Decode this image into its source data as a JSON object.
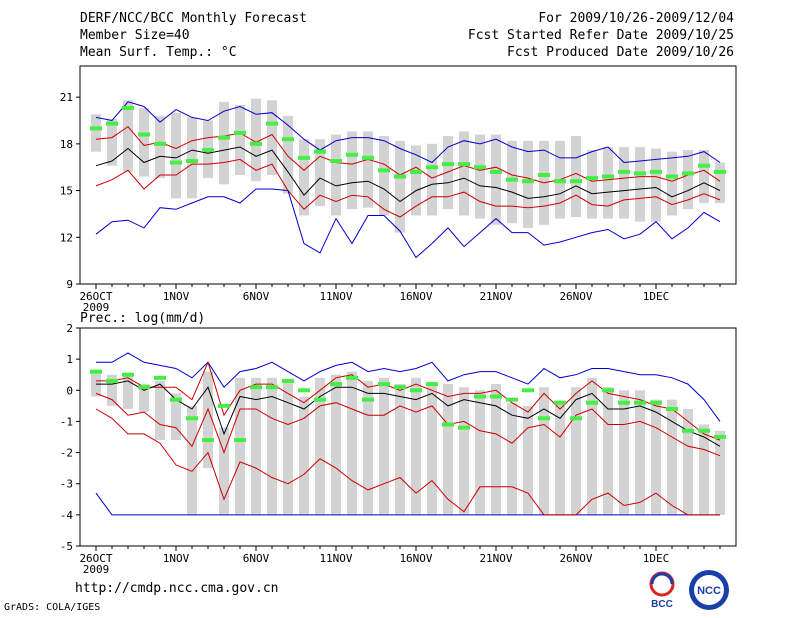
{
  "header": {
    "title": "DERF/NCC/BCC Monthly Forecast",
    "member": "Member Size=40",
    "variable": "Mean Surf. Temp.: °C",
    "period": "For 2009/10/26-2009/12/04",
    "start": "Fcst Started Refer Date 2009/10/25",
    "produced": "Fcst Produced Date 2009/10/26"
  },
  "footer": {
    "url": "http://cmdp.ncc.cma.gov.cn",
    "grads": "GrADS: COLA/IGES",
    "logo_left_text": "BCC",
    "logo_right_text": "NCC"
  },
  "colors": {
    "envelope": "#0000cc",
    "percentile": "#cc0000",
    "mean": "#000000",
    "box": "#d3d3d3",
    "obs": "#44ee44"
  },
  "chart_data": [
    {
      "type": "box",
      "title": "Mean Surf. Temp.: °C",
      "ylim": [
        9,
        23
      ],
      "yticks": [
        9,
        12,
        15,
        18,
        21
      ],
      "xlim": [
        0,
        41
      ],
      "xtick_positions": [
        1,
        6,
        11,
        16,
        21,
        26,
        31,
        36
      ],
      "xtick_labels": [
        "26OCT",
        "1NOV",
        "6NOV",
        "11NOV",
        "16NOV",
        "21NOV",
        "26NOV",
        "1DEC"
      ],
      "x_year_label": "2009",
      "x": [
        1,
        2,
        3,
        4,
        5,
        6,
        7,
        8,
        9,
        10,
        11,
        12,
        13,
        14,
        15,
        16,
        17,
        18,
        19,
        20,
        21,
        22,
        23,
        24,
        25,
        26,
        27,
        28,
        29,
        30,
        31,
        32,
        33,
        34,
        35,
        36,
        37,
        38,
        39,
        40
      ],
      "series": [
        {
          "name": "max",
          "values": [
            19.7,
            19.5,
            20.7,
            20.4,
            19.4,
            20.2,
            19.7,
            19.5,
            20.1,
            20.4,
            19.9,
            20.0,
            19.2,
            18.3,
            17.6,
            18.2,
            18.4,
            18.4,
            18.2,
            17.7,
            17.3,
            16.8,
            17.8,
            18.2,
            18.0,
            18.3,
            17.8,
            17.5,
            17.6,
            17.1,
            17.1,
            17.5,
            17.8,
            16.8,
            16.9,
            17.0,
            17.1,
            17.2,
            17.5,
            16.8
          ]
        },
        {
          "name": "p90",
          "values": [
            18.3,
            18.4,
            19.1,
            17.9,
            18.1,
            17.7,
            18.2,
            18.4,
            18.5,
            18.7,
            18.1,
            18.6,
            17.2,
            16.3,
            17.2,
            16.8,
            16.7,
            17.0,
            16.7,
            16.0,
            16.5,
            15.8,
            16.2,
            16.6,
            16.3,
            16.5,
            16.0,
            15.8,
            15.5,
            15.7,
            16.1,
            15.6,
            15.7,
            15.8,
            15.9,
            15.9,
            15.6,
            16.0,
            16.3,
            15.6
          ]
        },
        {
          "name": "mean",
          "values": [
            16.6,
            16.9,
            17.7,
            16.8,
            17.2,
            17.1,
            17.6,
            17.4,
            17.6,
            17.8,
            17.2,
            17.6,
            16.2,
            14.7,
            15.8,
            15.3,
            15.5,
            15.6,
            15.1,
            14.3,
            15.0,
            15.4,
            15.5,
            15.8,
            15.3,
            15.2,
            14.9,
            14.5,
            14.6,
            14.8,
            15.3,
            14.8,
            14.9,
            15.0,
            15.1,
            15.2,
            14.6,
            15.0,
            15.5,
            15.0
          ]
        },
        {
          "name": "p10",
          "values": [
            15.3,
            15.7,
            16.3,
            15.1,
            16.0,
            16.0,
            16.7,
            16.7,
            16.8,
            17.0,
            16.3,
            16.7,
            15.0,
            13.8,
            14.7,
            14.3,
            14.7,
            14.6,
            13.8,
            13.3,
            14.0,
            14.6,
            14.6,
            14.9,
            14.3,
            14.0,
            14.0,
            13.9,
            14.0,
            14.2,
            14.7,
            14.1,
            14.0,
            14.4,
            14.5,
            14.6,
            14.1,
            14.4,
            14.8,
            14.4
          ]
        },
        {
          "name": "min",
          "values": [
            12.2,
            13.0,
            13.1,
            12.6,
            13.9,
            13.8,
            14.2,
            14.6,
            14.6,
            14.2,
            15.1,
            15.1,
            15.0,
            11.6,
            11.0,
            13.2,
            11.6,
            13.4,
            13.4,
            12.4,
            10.7,
            11.6,
            12.6,
            11.4,
            12.3,
            13.2,
            12.3,
            12.3,
            11.5,
            11.7,
            12.0,
            12.3,
            12.5,
            11.9,
            12.2,
            13.0,
            11.9,
            12.6,
            13.6,
            13.0
          ]
        }
      ],
      "boxes": {
        "upper": [
          19.9,
          19.6,
          20.8,
          20.3,
          19.8,
          20.0,
          19.7,
          19.5,
          20.7,
          20.5,
          20.9,
          20.8,
          19.8,
          18.3,
          18.3,
          18.6,
          18.8,
          18.8,
          18.5,
          18.2,
          17.9,
          18.0,
          18.5,
          18.8,
          18.6,
          18.6,
          18.2,
          18.2,
          18.2,
          18.2,
          18.5,
          17.6,
          17.8,
          17.8,
          17.8,
          17.7,
          17.5,
          17.6,
          17.6,
          16.8
        ],
        "lower": [
          17.5,
          16.6,
          16.2,
          15.9,
          15.8,
          14.5,
          14.5,
          15.8,
          15.4,
          16.0,
          15.6,
          16.0,
          14.8,
          13.4,
          14.0,
          13.4,
          13.8,
          13.9,
          13.4,
          12.3,
          13.4,
          13.4,
          13.8,
          13.4,
          13.2,
          12.8,
          12.9,
          12.6,
          12.8,
          13.2,
          13.3,
          13.2,
          13.2,
          13.2,
          13.0,
          13.0,
          13.4,
          13.8,
          14.2,
          14.2
        ]
      },
      "observation": [
        19.0,
        19.3,
        20.3,
        18.6,
        18.0,
        16.8,
        16.9,
        17.6,
        18.4,
        18.7,
        18.0,
        19.3,
        18.3,
        17.1,
        17.5,
        16.9,
        17.3,
        17.1,
        16.3,
        15.9,
        16.2,
        16.5,
        16.7,
        16.7,
        16.5,
        16.2,
        15.7,
        15.6,
        16.0,
        15.6,
        15.6,
        15.8,
        15.9,
        16.2,
        16.1,
        16.2,
        15.9,
        16.1,
        16.6,
        16.2
      ]
    },
    {
      "type": "box",
      "title": "Prec.: log(mm/d)",
      "ylim": [
        -5,
        2
      ],
      "yticks": [
        -5,
        -4,
        -3,
        -2,
        -1,
        0,
        1,
        2
      ],
      "xlim": [
        0,
        41
      ],
      "xtick_positions": [
        1,
        6,
        11,
        16,
        21,
        26,
        31,
        36
      ],
      "xtick_labels": [
        "26OCT",
        "1NOV",
        "6NOV",
        "11NOV",
        "16NOV",
        "21NOV",
        "26NOV",
        "1DEC"
      ],
      "x_year_label": "2009",
      "x": [
        1,
        2,
        3,
        4,
        5,
        6,
        7,
        8,
        9,
        10,
        11,
        12,
        13,
        14,
        15,
        16,
        17,
        18,
        19,
        20,
        21,
        22,
        23,
        24,
        25,
        26,
        27,
        28,
        29,
        30,
        31,
        32,
        33,
        34,
        35,
        36,
        37,
        38,
        39,
        40
      ],
      "series": [
        {
          "name": "max",
          "values": [
            0.9,
            0.9,
            1.2,
            0.9,
            0.8,
            0.7,
            0.4,
            0.9,
            0.1,
            0.6,
            0.7,
            0.9,
            0.6,
            0.3,
            0.6,
            0.8,
            0.9,
            0.6,
            0.7,
            0.6,
            0.7,
            0.9,
            0.3,
            0.5,
            0.6,
            0.6,
            0.4,
            0.2,
            0.7,
            0.4,
            0.5,
            0.7,
            0.7,
            0.6,
            0.5,
            0.5,
            0.4,
            0.2,
            -0.3,
            -1.0
          ]
        },
        {
          "name": "p90",
          "values": [
            0.3,
            0.3,
            0.4,
            0.1,
            0.1,
            0.1,
            -0.3,
            0.9,
            -0.8,
            0.0,
            0.2,
            0.2,
            -0.1,
            -0.4,
            0.0,
            0.4,
            0.5,
            0.1,
            0.2,
            0.0,
            0.2,
            0.0,
            -0.2,
            -0.1,
            -0.1,
            0.0,
            -0.4,
            -0.7,
            -0.1,
            -0.6,
            -0.1,
            0.3,
            -0.1,
            -0.2,
            -0.3,
            -0.5,
            -0.6,
            -1.0,
            -1.4,
            -1.6
          ]
        },
        {
          "name": "mean",
          "values": [
            0.2,
            0.2,
            0.3,
            0.0,
            0.2,
            -0.3,
            -0.6,
            0.1,
            -1.4,
            -0.2,
            -0.3,
            -0.2,
            -0.4,
            -0.6,
            -0.2,
            0.1,
            0.1,
            -0.1,
            -0.1,
            -0.2,
            -0.3,
            -0.1,
            -0.5,
            -0.3,
            -0.4,
            -0.5,
            -0.8,
            -0.9,
            -0.6,
            -0.9,
            -0.3,
            -0.1,
            -0.6,
            -0.6,
            -0.5,
            -0.7,
            -1.0,
            -1.3,
            -1.5,
            -1.8
          ]
        },
        {
          "name": "p10",
          "values": [
            -0.1,
            -0.3,
            -0.8,
            -0.7,
            -1.1,
            -1.2,
            -1.8,
            -0.6,
            -2.0,
            -0.6,
            -0.6,
            -0.9,
            -1.1,
            -0.9,
            -0.5,
            -0.4,
            -0.6,
            -0.8,
            -0.8,
            -0.5,
            -0.7,
            -0.5,
            -1.1,
            -1.0,
            -1.3,
            -1.4,
            -1.7,
            -1.2,
            -1.1,
            -1.5,
            -0.8,
            -0.6,
            -1.1,
            -1.1,
            -1.0,
            -1.2,
            -1.5,
            -1.8,
            -1.9,
            -2.1
          ]
        },
        {
          "name": "min",
          "values": [
            -3.3,
            -4.0,
            -4.0,
            -4.0,
            -4.0,
            -4.0,
            -4.0,
            -4.0,
            -4.0,
            -4.0,
            -4.0,
            -4.0,
            -4.0,
            -4.0,
            -4.0,
            -4.0,
            -4.0,
            -4.0,
            -4.0,
            -4.0,
            -4.0,
            -4.0,
            -4.0,
            -4.0,
            -4.0,
            -4.0,
            -4.0,
            -4.0,
            -4.0,
            -4.0,
            -4.0,
            -4.0,
            -4.0,
            -4.0,
            -4.0,
            -4.0,
            -4.0,
            -4.0,
            -4.0,
            -4.0
          ]
        },
        {
          "name": "p2",
          "values": [
            -0.6,
            -0.9,
            -1.4,
            -1.4,
            -1.7,
            -2.4,
            -2.6,
            -2.0,
            -3.5,
            -2.3,
            -2.5,
            -2.8,
            -3.0,
            -2.7,
            -2.2,
            -2.5,
            -2.9,
            -3.2,
            -3.0,
            -2.8,
            -3.3,
            -2.9,
            -3.5,
            -3.9,
            -3.1,
            -3.1,
            -3.1,
            -3.3,
            -4.0,
            -4.0,
            -4.0,
            -3.5,
            -3.3,
            -3.7,
            -3.6,
            -3.3,
            -3.7,
            -4.0,
            -4.0,
            -4.0
          ]
        }
      ],
      "boxes": {
        "upper": [
          0.6,
          0.5,
          0.5,
          0.2,
          0.3,
          -0.1,
          -0.5,
          0.6,
          -1.2,
          0.4,
          0.4,
          0.4,
          0.3,
          -0.2,
          0.4,
          0.5,
          0.6,
          0.3,
          0.4,
          0.2,
          0.4,
          0.2,
          0.2,
          0.1,
          0.0,
          0.2,
          -0.4,
          -0.5,
          0.1,
          -0.4,
          0.1,
          0.4,
          0.1,
          0.0,
          0.0,
          -0.3,
          -0.3,
          -0.6,
          -1.1,
          -1.3
        ],
        "lower": [
          -0.2,
          -0.5,
          -0.6,
          -0.7,
          -1.6,
          -1.6,
          -4.0,
          -2.5,
          -4.0,
          -4.0,
          -4.0,
          -4.0,
          -4.0,
          -4.0,
          -4.0,
          -4.0,
          -4.0,
          -4.0,
          -4.0,
          -4.0,
          -4.0,
          -4.0,
          -4.0,
          -4.0,
          -4.0,
          -4.0,
          -4.0,
          -4.0,
          -4.0,
          -4.0,
          -4.0,
          -4.0,
          -4.0,
          -4.0,
          -4.0,
          -4.0,
          -4.0,
          -4.0,
          -4.0,
          -4.0
        ]
      },
      "observation": [
        0.6,
        0.3,
        0.5,
        0.1,
        0.4,
        -0.3,
        -0.9,
        -1.6,
        -0.5,
        -1.6,
        0.1,
        0.1,
        0.3,
        0.0,
        -0.3,
        0.2,
        0.4,
        -0.3,
        0.2,
        0.1,
        0.0,
        0.2,
        -1.1,
        -1.2,
        -0.2,
        -0.2,
        -0.3,
        0.0,
        -0.9,
        -0.4,
        -0.9,
        -0.4,
        0.0,
        -0.4,
        -0.4,
        -0.4,
        -0.6,
        -1.3,
        -1.3,
        -1.5
      ]
    }
  ]
}
